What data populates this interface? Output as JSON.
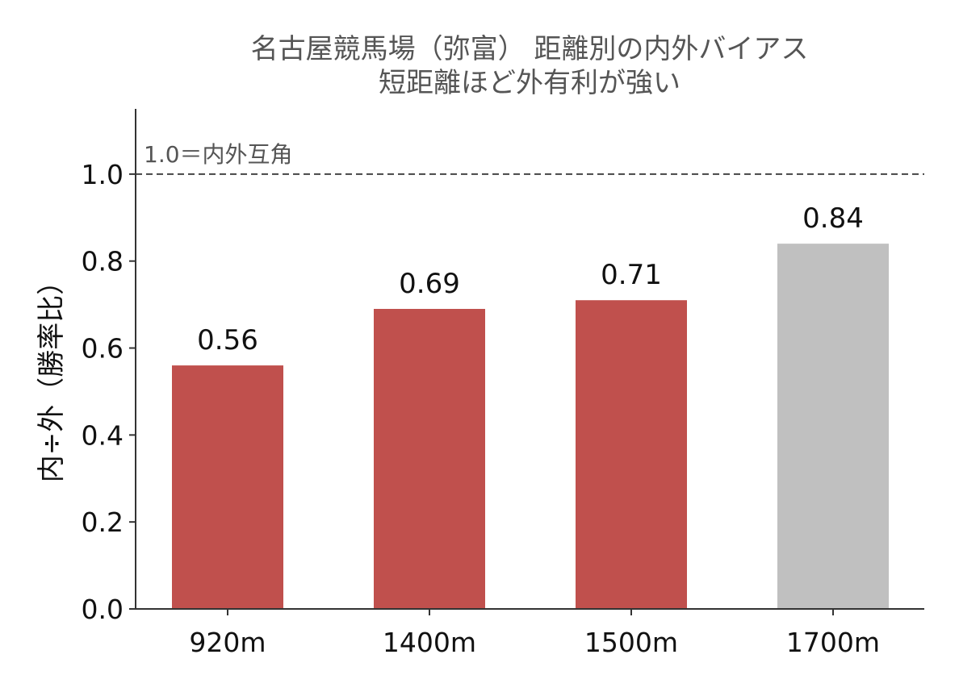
{
  "chart_data": {
    "type": "bar",
    "title": "名古屋競馬場（弥富） 距離別の内外バイアス",
    "subtitle": "短距離ほど外有利が強い",
    "xlabel": "",
    "ylabel": "内÷外（勝率比）",
    "categories": [
      "920m",
      "1400m",
      "1500m",
      "1700m"
    ],
    "values": [
      0.56,
      0.69,
      0.71,
      0.84
    ],
    "value_labels": [
      "0.56",
      "0.69",
      "0.71",
      "0.84"
    ],
    "bar_colors": [
      "#c0504d",
      "#c0504d",
      "#c0504d",
      "#c0c0c0"
    ],
    "ylim": [
      0,
      1.15
    ],
    "yticks": [
      0.0,
      0.2,
      0.4,
      0.6,
      0.8,
      1.0
    ],
    "ytick_labels": [
      "0.0",
      "0.2",
      "0.4",
      "0.6",
      "0.8",
      "1.0"
    ],
    "reference_line": {
      "value": 1.0,
      "label": "1.0＝内外互角",
      "style": "dashed",
      "color": "#444444"
    },
    "grid": false,
    "legend": "none"
  }
}
